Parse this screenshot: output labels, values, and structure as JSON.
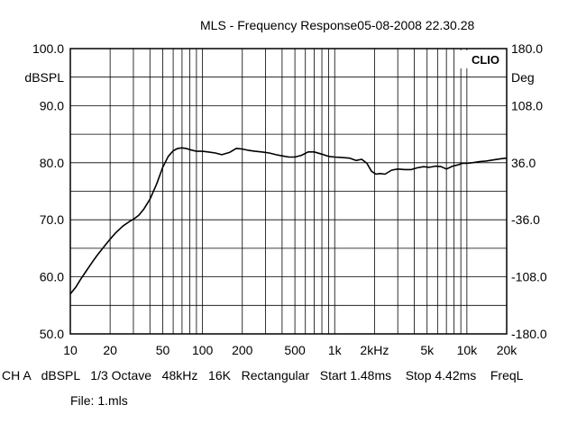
{
  "title": "MLS - Frequency Response05-08-2008 22.30.28",
  "settings_line": "CH A   dBSPL   1/3 Octave   48kHz   16K   Rectangular   Start 1.48ms    Stop 4.42ms    FreqL",
  "file_line": "File: 1.mls",
  "chart_data": {
    "type": "line",
    "title": "MLS - Frequency Response05-08-2008 22.30.28",
    "xscale": "log",
    "xlim": [
      10,
      20000
    ],
    "ylim": [
      50,
      100
    ],
    "y2lim": [
      -180,
      180
    ],
    "ylabel": "dBSPL",
    "y2label": "Deg",
    "brand": "CLIO",
    "grid": true,
    "x_ticks": [
      {
        "v": 10,
        "label": "10"
      },
      {
        "v": 20,
        "label": "20"
      },
      {
        "v": 50,
        "label": "50"
      },
      {
        "v": 100,
        "label": "100"
      },
      {
        "v": 200,
        "label": "200"
      },
      {
        "v": 500,
        "label": "500"
      },
      {
        "v": 1000,
        "label": "1k"
      },
      {
        "v": 2000,
        "label": "2kHz"
      },
      {
        "v": 5000,
        "label": "5k"
      },
      {
        "v": 10000,
        "label": "10k"
      },
      {
        "v": 20000,
        "label": "20k"
      }
    ],
    "y_ticks": [
      {
        "v": 100,
        "label": "100.0"
      },
      {
        "v": 90,
        "label": "90.0"
      },
      {
        "v": 80,
        "label": "80.0"
      },
      {
        "v": 70,
        "label": "70.0"
      },
      {
        "v": 60,
        "label": "60.0"
      },
      {
        "v": 50,
        "label": "50.0"
      }
    ],
    "y2_ticks": [
      {
        "v": 180,
        "label": "180.0"
      },
      {
        "v": 108,
        "label": "108.0"
      },
      {
        "v": 36,
        "label": "36.0"
      },
      {
        "v": -36,
        "label": "-36.0"
      },
      {
        "v": -108,
        "label": "-108.0"
      },
      {
        "v": -180,
        "label": "-180.0"
      }
    ],
    "series": [
      {
        "x": [
          10,
          11,
          12,
          13,
          14,
          15,
          16,
          18,
          20,
          22,
          25,
          28,
          30,
          33,
          36,
          40,
          45,
          50,
          55,
          60,
          65,
          70,
          75,
          80,
          90,
          100,
          110,
          125,
          140,
          160,
          180,
          200,
          220,
          250,
          280,
          320,
          360,
          400,
          450,
          500,
          560,
          630,
          700,
          800,
          900,
          1000,
          1150,
          1300,
          1450,
          1600,
          1750,
          1900,
          2050,
          2200,
          2400,
          2700,
          3000,
          3400,
          3800,
          4200,
          4700,
          5200,
          5800,
          6400,
          7000,
          7800,
          8500,
          9300,
          10000,
          11000,
          12500,
          14000,
          16000,
          18000,
          20000
        ],
        "y": [
          57.0,
          58.2,
          59.6,
          60.8,
          61.9,
          62.9,
          63.8,
          65.3,
          66.6,
          67.7,
          68.9,
          69.7,
          70.1,
          70.8,
          71.9,
          73.6,
          76.3,
          79.2,
          81.1,
          82.1,
          82.5,
          82.6,
          82.5,
          82.3,
          82.0,
          82.0,
          81.9,
          81.7,
          81.4,
          81.8,
          82.5,
          82.4,
          82.2,
          82.0,
          81.9,
          81.7,
          81.4,
          81.2,
          81.0,
          81.0,
          81.3,
          81.9,
          81.9,
          81.5,
          81.1,
          81.0,
          80.9,
          80.8,
          80.4,
          80.6,
          79.9,
          78.5,
          78.0,
          78.1,
          78.0,
          78.7,
          78.9,
          78.8,
          78.8,
          79.1,
          79.3,
          79.2,
          79.4,
          79.3,
          78.9,
          79.4,
          79.6,
          79.9,
          79.9,
          80.0,
          80.2,
          80.3,
          80.5,
          80.7,
          80.8
        ]
      }
    ]
  }
}
